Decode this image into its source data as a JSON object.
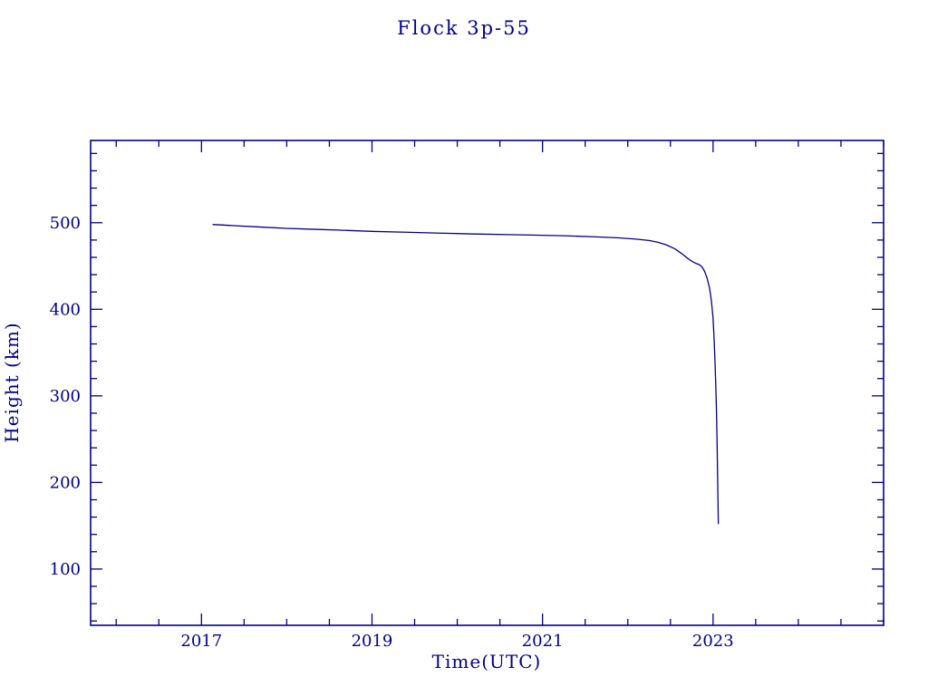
{
  "page": {
    "background": "#ffffff"
  },
  "chart_data": {
    "type": "line",
    "title": "Flock 3p-55",
    "xlabel": "Time(UTC)",
    "ylabel": "Height (km)",
    "line_color": "#00008b",
    "text_color": "#00008b",
    "frame_color": "#00008b",
    "grid": false,
    "legend": "none",
    "xlim": [
      2015.7,
      2025.0
    ],
    "ylim": [
      35,
      595
    ],
    "x_ticks": [
      2017,
      2019,
      2021,
      2023
    ],
    "y_ticks": [
      100,
      200,
      300,
      400,
      500
    ],
    "x_minor_step": 0.5,
    "y_minor_step": 20,
    "points": [
      [
        2017.13,
        498
      ],
      [
        2017.4,
        496.5
      ],
      [
        2017.7,
        495
      ],
      [
        2018.0,
        493.5
      ],
      [
        2018.3,
        492.5
      ],
      [
        2018.6,
        491.5
      ],
      [
        2019.0,
        490
      ],
      [
        2019.4,
        489
      ],
      [
        2019.8,
        488
      ],
      [
        2020.2,
        487
      ],
      [
        2020.6,
        486.3
      ],
      [
        2021.0,
        485.5
      ],
      [
        2021.3,
        484.8
      ],
      [
        2021.6,
        483.8
      ],
      [
        2021.9,
        482.5
      ],
      [
        2022.1,
        481
      ],
      [
        2022.25,
        479.5
      ],
      [
        2022.35,
        477.5
      ],
      [
        2022.45,
        474.5
      ],
      [
        2022.55,
        470
      ],
      [
        2022.63,
        464.5
      ],
      [
        2022.7,
        459
      ],
      [
        2022.75,
        455.5
      ],
      [
        2022.8,
        453
      ],
      [
        2022.84,
        451.5
      ],
      [
        2022.87,
        449
      ],
      [
        2022.9,
        444
      ],
      [
        2022.93,
        436
      ],
      [
        2022.96,
        424
      ],
      [
        2022.98,
        410
      ],
      [
        2023.0,
        390
      ],
      [
        2023.01,
        370
      ],
      [
        2023.02,
        347
      ],
      [
        2023.03,
        318
      ],
      [
        2023.04,
        283
      ],
      [
        2023.047,
        248
      ],
      [
        2023.053,
        210
      ],
      [
        2023.058,
        178
      ],
      [
        2023.062,
        152
      ]
    ]
  }
}
